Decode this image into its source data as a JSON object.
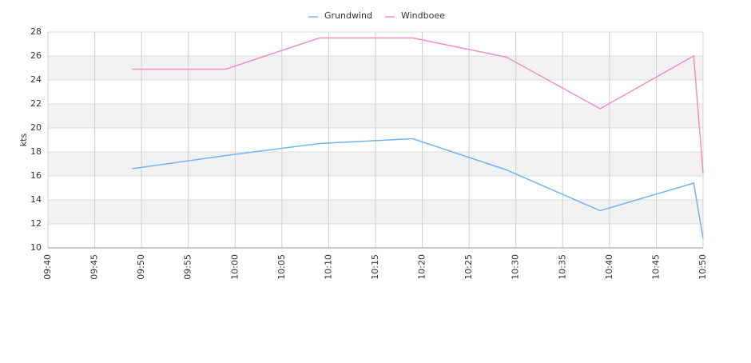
{
  "chart_data": {
    "type": "line",
    "ylabel": "kts",
    "x": [
      "09:49",
      "09:59",
      "10:09",
      "10:19",
      "10:29",
      "10:39",
      "10:49",
      "10:50"
    ],
    "series": [
      {
        "name": "Grundwind",
        "color": "#74b3ee",
        "values": [
          16.6,
          17.7,
          18.7,
          19.1,
          16.5,
          13.1,
          15.4,
          10.8
        ]
      },
      {
        "name": "Windboee",
        "color": "#f08fc0",
        "values": [
          24.9,
          24.9,
          27.5,
          27.5,
          25.9,
          21.6,
          26.0,
          16.2
        ]
      }
    ],
    "xlim": [
      "09:40",
      "10:50"
    ],
    "xticks": [
      "09:40",
      "09:45",
      "09:50",
      "09:55",
      "10:00",
      "10:05",
      "10:10",
      "10:15",
      "10:20",
      "10:25",
      "10:30",
      "10:35",
      "10:40",
      "10:45",
      "10:50"
    ],
    "ylim": [
      10,
      28
    ],
    "yticks": [
      10,
      12,
      14,
      16,
      18,
      20,
      22,
      24,
      26,
      28
    ],
    "grid": true,
    "legend": "top"
  }
}
